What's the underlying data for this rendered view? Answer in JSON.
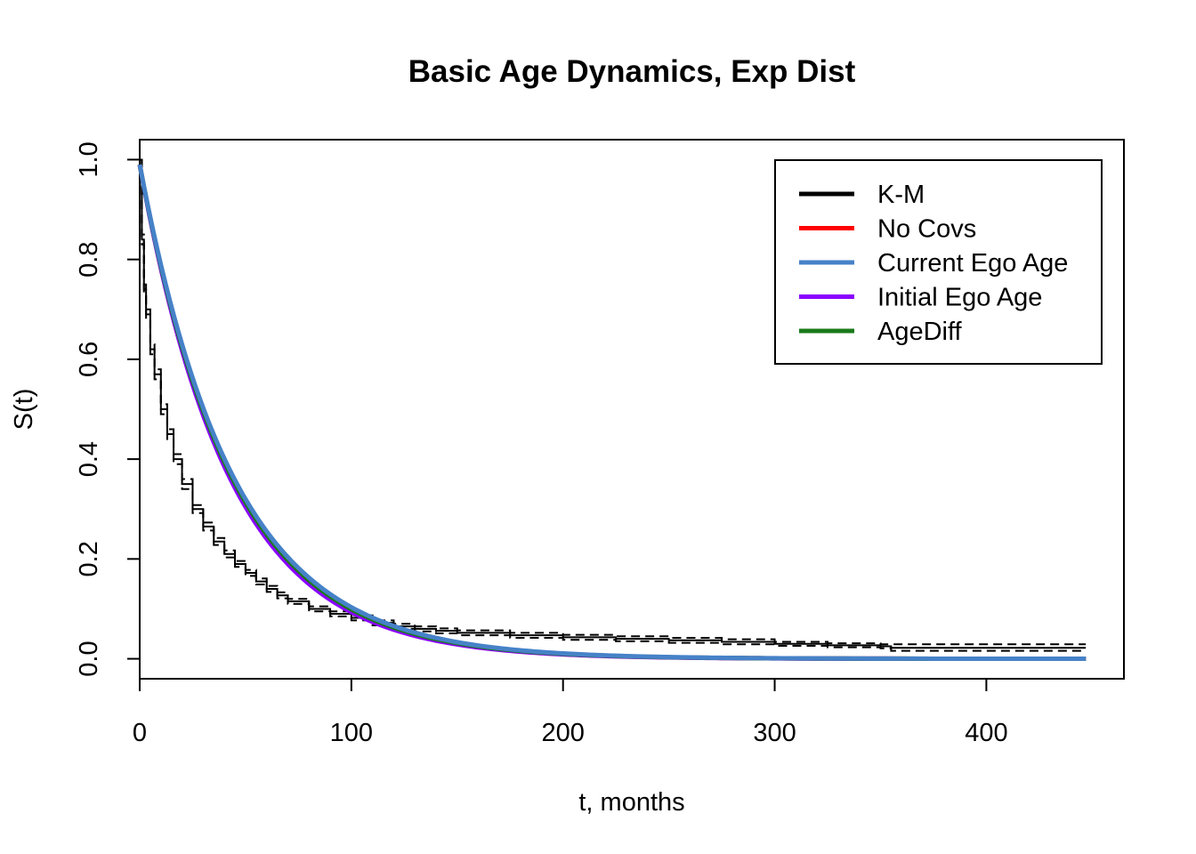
{
  "chart_data": {
    "type": "line",
    "title": "Basic Age Dynamics, Exp Dist",
    "xlabel": "t, months",
    "ylabel": "S(t)",
    "xlim": [
      0,
      465
    ],
    "ylim": [
      -0.04,
      1.04
    ],
    "x_ticks": [
      0,
      100,
      200,
      300,
      400
    ],
    "y_ticks": [
      0.0,
      0.2,
      0.4,
      0.6,
      0.8,
      1.0
    ],
    "x_tick_labels": [
      "0",
      "100",
      "200",
      "300",
      "400"
    ],
    "y_tick_labels": [
      "0.0",
      "0.2",
      "0.4",
      "0.6",
      "0.8",
      "1.0"
    ],
    "grid": false,
    "legend_position": "top-right",
    "legend": [
      {
        "label": "K-M",
        "color": "#000000"
      },
      {
        "label": "No Covs",
        "color": "#ff0000"
      },
      {
        "label": "Current Ego Age",
        "color": "#4682c8"
      },
      {
        "label": "Initial Ego Age",
        "color": "#8a00ff"
      },
      {
        "label": "AgeDiff",
        "color": "#1a7a1a"
      }
    ],
    "series": [
      {
        "name": "K-M",
        "color": "#000000",
        "style": "step",
        "x": [
          0,
          1,
          2,
          3,
          5,
          7,
          10,
          13,
          16,
          20,
          25,
          30,
          35,
          40,
          45,
          50,
          55,
          60,
          65,
          70,
          80,
          90,
          100,
          110,
          120,
          130,
          140,
          150,
          175,
          200,
          225,
          250,
          275,
          300,
          325,
          350,
          355,
          447
        ],
        "y": [
          1.0,
          0.84,
          0.74,
          0.69,
          0.62,
          0.57,
          0.5,
          0.45,
          0.4,
          0.35,
          0.3,
          0.265,
          0.235,
          0.21,
          0.19,
          0.172,
          0.155,
          0.14,
          0.127,
          0.115,
          0.1,
          0.09,
          0.082,
          0.072,
          0.065,
          0.06,
          0.056,
          0.052,
          0.047,
          0.043,
          0.04,
          0.037,
          0.034,
          0.03,
          0.027,
          0.025,
          0.022,
          0.022
        ],
        "ci_lower": [
          1.0,
          0.83,
          0.73,
          0.68,
          0.61,
          0.56,
          0.49,
          0.44,
          0.39,
          0.34,
          0.292,
          0.257,
          0.228,
          0.203,
          0.184,
          0.166,
          0.149,
          0.134,
          0.121,
          0.11,
          0.095,
          0.085,
          0.077,
          0.067,
          0.06,
          0.055,
          0.051,
          0.047,
          0.042,
          0.038,
          0.035,
          0.032,
          0.029,
          0.026,
          0.023,
          0.021,
          0.016,
          0.016
        ],
        "ci_upper": [
          1.0,
          0.85,
          0.75,
          0.7,
          0.63,
          0.58,
          0.51,
          0.46,
          0.41,
          0.36,
          0.308,
          0.273,
          0.242,
          0.217,
          0.196,
          0.178,
          0.161,
          0.146,
          0.133,
          0.12,
          0.105,
          0.095,
          0.087,
          0.077,
          0.07,
          0.065,
          0.061,
          0.057,
          0.052,
          0.048,
          0.045,
          0.042,
          0.039,
          0.034,
          0.031,
          0.029,
          0.029,
          0.029
        ]
      },
      {
        "name": "No Covs",
        "color": "#ff0000",
        "model": "exponential",
        "y0": 0.99,
        "rate": 0.0232,
        "x_range": [
          0,
          447
        ]
      },
      {
        "name": "Initial Ego Age",
        "color": "#8a00ff",
        "model": "exponential",
        "y0": 0.99,
        "rate": 0.0236,
        "x_range": [
          0,
          447
        ]
      },
      {
        "name": "AgeDiff",
        "color": "#1a7a1a",
        "model": "exponential",
        "y0": 0.99,
        "rate": 0.023,
        "x_range": [
          0,
          447
        ]
      },
      {
        "name": "Current Ego Age",
        "color": "#4682c8",
        "model": "exponential",
        "y0": 0.99,
        "rate": 0.0226,
        "x_range": [
          0,
          447
        ]
      }
    ]
  }
}
